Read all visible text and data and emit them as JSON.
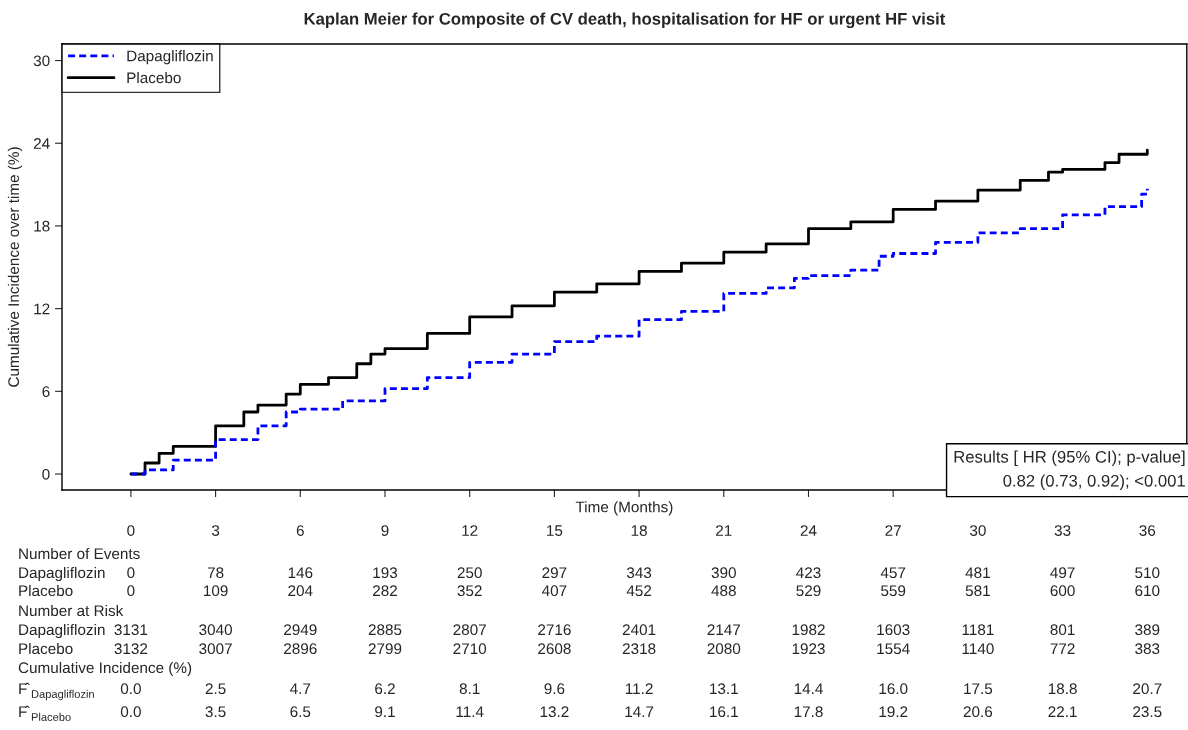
{
  "chart_data": {
    "type": "step",
    "title": "Kaplan Meier for Composite of CV death, hospitalisation for HF or urgent HF visit",
    "xlabel": "Time (Months)",
    "ylabel": "Cumulative Incidence over time (%)",
    "series": [
      {
        "name": "Dapagliflozin",
        "color": "#0000ff",
        "line_style": "dashed",
        "x": [
          0,
          0.5,
          1.5,
          3,
          4.5,
          5.5,
          6,
          7.5,
          9,
          10.5,
          12,
          13.5,
          15,
          16.5,
          18,
          19.5,
          21,
          22.5,
          23.5,
          24,
          25.5,
          26.5,
          27,
          28.5,
          30,
          31.5,
          33,
          34.5,
          35.8,
          36
        ],
        "values": [
          0,
          0.3,
          1.0,
          2.5,
          3.5,
          4.5,
          4.7,
          5.3,
          6.2,
          7.0,
          8.1,
          8.7,
          9.6,
          10.0,
          11.2,
          11.8,
          13.1,
          13.5,
          14.2,
          14.4,
          14.8,
          15.8,
          16.0,
          16.8,
          17.5,
          17.8,
          18.8,
          19.4,
          20.3,
          20.7
        ]
      },
      {
        "name": "Placebo",
        "color": "#000000",
        "line_style": "solid",
        "x": [
          0,
          0.5,
          1,
          1.5,
          3,
          4,
          4.5,
          5.5,
          6,
          7,
          8,
          8.5,
          9,
          10.5,
          12,
          13.5,
          15,
          16.5,
          18,
          19.5,
          21,
          22.5,
          24,
          25.5,
          27,
          28.5,
          30,
          31.5,
          32.5,
          33,
          34.5,
          35,
          36
        ],
        "values": [
          0,
          0.8,
          1.5,
          2.0,
          3.5,
          4.5,
          5.0,
          5.8,
          6.5,
          7.0,
          8.0,
          8.7,
          9.1,
          10.2,
          11.4,
          12.2,
          13.2,
          13.8,
          14.7,
          15.3,
          16.1,
          16.7,
          17.8,
          18.3,
          19.2,
          19.8,
          20.6,
          21.3,
          21.9,
          22.1,
          22.6,
          23.2,
          23.5
        ]
      }
    ],
    "xlim": [
      -2.44,
      37.4
    ],
    "ylim": [
      -1.16,
      31.2
    ],
    "xticks": [
      0,
      3,
      6,
      9,
      12,
      15,
      18,
      21,
      24,
      27,
      30,
      33,
      36
    ],
    "yticks": [
      0,
      6,
      12,
      18,
      24,
      30
    ],
    "grid": false,
    "legend": "top left",
    "annotations": [
      "Results [ HR (95% CI); p-value]",
      "0.82 (0.73, 0.92); <0.001",
      "Number of Events",
      "Dapagliflozin\t0\t78\t146\t193\t250\t297\t343\t390\t423\t457\t481\t497\t510",
      "Placebo\t0\t109\t204\t282\t352\t407\t452\t488\t529\t559\t581\t600\t610",
      "Number at Risk",
      "Dapagliflozin\t3131\t3040\t2949\t2885\t2807\t2716\t2401\t2147\t1982\t1603\t1181\t801\t389",
      "Placebo\t3132\t3007\t2896\t2799\t2710\t2608\t2318\t2080\t1923\t1554\t1140\t772\t383",
      "Cumulative Incidence (%)",
      "F̂$_{Dapagliflozin}$\t0.0\t2.5\t4.7\t6.2\t8.1\t9.6\t11.2\t13.1\t14.4\t16.0\t17.5\t18.8\t20.7",
      "F̂$_{Placebo}$\t0.0\t3.5\t6.5\t9.1\t11.4\t13.2\t14.7\t16.1\t17.8\t19.2\t20.6\t22.1\t23.5"
    ]
  }
}
